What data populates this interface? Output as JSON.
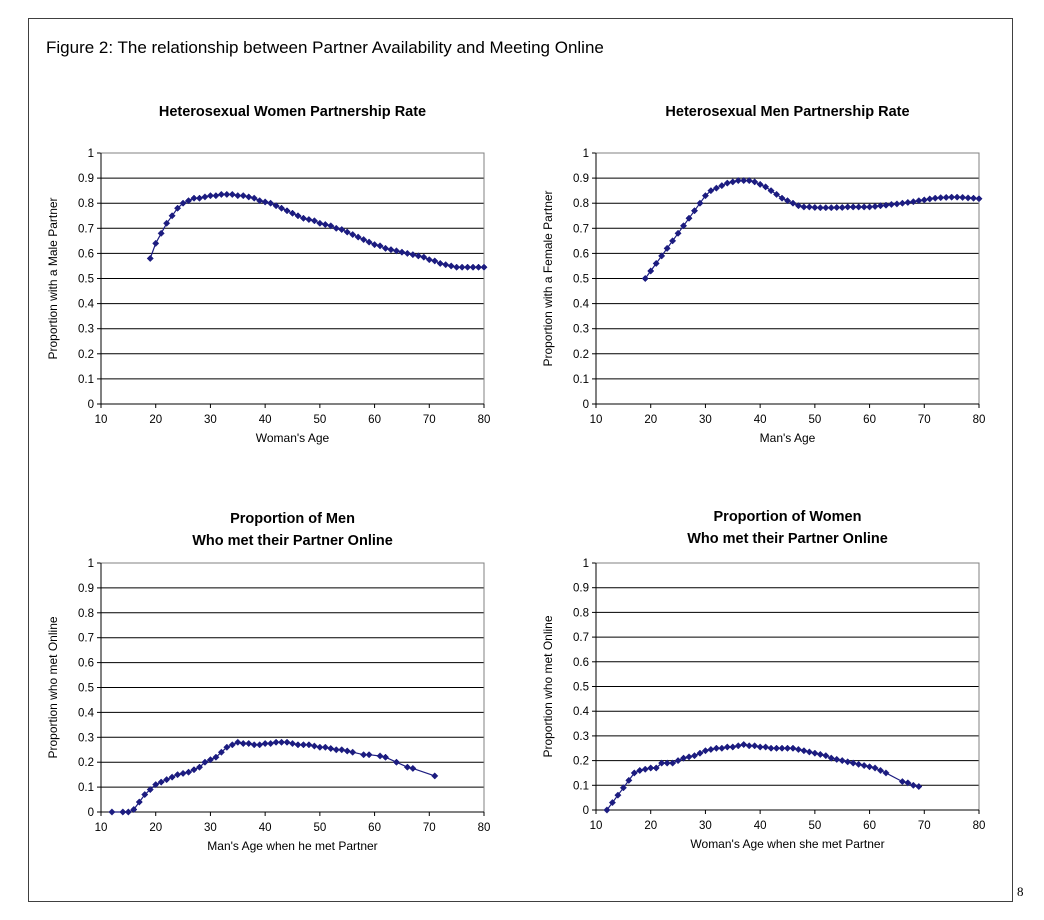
{
  "figure_title": "Figure 2: The relationship between Partner Availability and Meeting Online",
  "page_number": "8",
  "colors": {
    "series": "#1c1c80",
    "grid": "#000000",
    "frame": "#404040"
  },
  "chart_data": [
    {
      "type": "line",
      "title": "Heterosexual Women Partnership Rate",
      "xlabel": "Woman's Age",
      "ylabel": "Proportion with a Male Partner",
      "xlim": [
        10,
        80
      ],
      "ylim": [
        0,
        1
      ],
      "xticks": [
        "10",
        "20",
        "30",
        "40",
        "50",
        "60",
        "70",
        "80"
      ],
      "yticks": [
        "0",
        "0.1",
        "0.2",
        "0.3",
        "0.4",
        "0.5",
        "0.6",
        "0.7",
        "0.8",
        "0.9",
        "1"
      ],
      "grid": true,
      "marker": "diamond",
      "x": [
        19,
        20,
        21,
        22,
        23,
        24,
        25,
        26,
        27,
        28,
        29,
        30,
        31,
        32,
        33,
        34,
        35,
        36,
        37,
        38,
        39,
        40,
        41,
        42,
        43,
        44,
        45,
        46,
        47,
        48,
        49,
        50,
        51,
        52,
        53,
        54,
        55,
        56,
        57,
        58,
        59,
        60,
        61,
        62,
        63,
        64,
        65,
        66,
        67,
        68,
        69,
        70,
        71,
        72,
        73,
        74,
        75,
        76,
        77,
        78,
        79,
        80
      ],
      "y": [
        0.58,
        0.64,
        0.68,
        0.72,
        0.75,
        0.78,
        0.8,
        0.81,
        0.82,
        0.82,
        0.825,
        0.83,
        0.83,
        0.835,
        0.835,
        0.835,
        0.83,
        0.83,
        0.825,
        0.82,
        0.81,
        0.805,
        0.8,
        0.79,
        0.78,
        0.77,
        0.76,
        0.75,
        0.74,
        0.735,
        0.73,
        0.72,
        0.715,
        0.71,
        0.7,
        0.695,
        0.685,
        0.675,
        0.665,
        0.655,
        0.645,
        0.635,
        0.63,
        0.62,
        0.615,
        0.61,
        0.605,
        0.6,
        0.595,
        0.59,
        0.585,
        0.575,
        0.57,
        0.56,
        0.555,
        0.55,
        0.545,
        0.545,
        0.545,
        0.545,
        0.545,
        0.545
      ]
    },
    {
      "type": "line",
      "title": "Heterosexual Men Partnership Rate",
      "xlabel": "Man's Age",
      "ylabel": "Proportion with a Female Partner",
      "xlim": [
        10,
        80
      ],
      "ylim": [
        0,
        1
      ],
      "xticks": [
        "10",
        "20",
        "30",
        "40",
        "50",
        "60",
        "70",
        "80"
      ],
      "yticks": [
        "0",
        "0.1",
        "0.2",
        "0.3",
        "0.4",
        "0.5",
        "0.6",
        "0.7",
        "0.8",
        "0.9",
        "1"
      ],
      "grid": true,
      "marker": "diamond",
      "x": [
        19,
        20,
        21,
        22,
        23,
        24,
        25,
        26,
        27,
        28,
        29,
        30,
        31,
        32,
        33,
        34,
        35,
        36,
        37,
        38,
        39,
        40,
        41,
        42,
        43,
        44,
        45,
        46,
        47,
        48,
        49,
        50,
        51,
        52,
        53,
        54,
        55,
        56,
        57,
        58,
        59,
        60,
        61,
        62,
        63,
        64,
        65,
        66,
        67,
        68,
        69,
        70,
        71,
        72,
        73,
        74,
        75,
        76,
        77,
        78,
        79,
        80
      ],
      "y": [
        0.5,
        0.53,
        0.56,
        0.59,
        0.62,
        0.65,
        0.68,
        0.71,
        0.74,
        0.77,
        0.8,
        0.83,
        0.85,
        0.86,
        0.87,
        0.88,
        0.885,
        0.89,
        0.89,
        0.89,
        0.885,
        0.875,
        0.865,
        0.85,
        0.835,
        0.82,
        0.81,
        0.8,
        0.79,
        0.785,
        0.785,
        0.783,
        0.782,
        0.782,
        0.782,
        0.783,
        0.783,
        0.785,
        0.785,
        0.785,
        0.785,
        0.785,
        0.787,
        0.79,
        0.792,
        0.795,
        0.797,
        0.8,
        0.803,
        0.806,
        0.81,
        0.813,
        0.817,
        0.82,
        0.822,
        0.823,
        0.824,
        0.824,
        0.823,
        0.821,
        0.82,
        0.818
      ]
    },
    {
      "type": "line",
      "title": "Proportion of Men\nWho met their Partner Online",
      "xlabel": "Man's Age when he met Partner",
      "ylabel": "Proportion who met Online",
      "xlim": [
        10,
        80
      ],
      "ylim": [
        0,
        1
      ],
      "xticks": [
        "10",
        "20",
        "30",
        "40",
        "50",
        "60",
        "70",
        "80"
      ],
      "yticks": [
        "0",
        "0.1",
        "0.2",
        "0.3",
        "0.4",
        "0.5",
        "0.6",
        "0.7",
        "0.8",
        "0.9",
        "1"
      ],
      "grid": true,
      "marker": "diamond",
      "x": [
        12,
        14,
        15,
        16,
        17,
        18,
        19,
        20,
        21,
        22,
        23,
        24,
        25,
        26,
        27,
        28,
        29,
        30,
        31,
        32,
        33,
        34,
        35,
        36,
        37,
        38,
        39,
        40,
        41,
        42,
        43,
        44,
        45,
        46,
        47,
        48,
        49,
        50,
        51,
        52,
        53,
        54,
        55,
        56,
        58,
        59,
        61,
        62,
        64,
        66,
        67,
        71
      ],
      "y": [
        0.0,
        0.0,
        0.0,
        0.01,
        0.04,
        0.07,
        0.09,
        0.11,
        0.12,
        0.13,
        0.14,
        0.15,
        0.155,
        0.16,
        0.17,
        0.18,
        0.2,
        0.21,
        0.22,
        0.24,
        0.26,
        0.27,
        0.28,
        0.275,
        0.275,
        0.27,
        0.27,
        0.275,
        0.275,
        0.28,
        0.28,
        0.28,
        0.275,
        0.27,
        0.27,
        0.27,
        0.265,
        0.26,
        0.26,
        0.255,
        0.25,
        0.25,
        0.245,
        0.24,
        0.23,
        0.23,
        0.225,
        0.22,
        0.2,
        0.18,
        0.175,
        0.145
      ]
    },
    {
      "type": "line",
      "title": "Proportion of Women\nWho met their Partner Online",
      "xlabel": "Woman's Age when she met Partner",
      "ylabel": "Proportion who met Online",
      "xlim": [
        10,
        80
      ],
      "ylim": [
        0,
        1
      ],
      "xticks": [
        "10",
        "20",
        "30",
        "40",
        "50",
        "60",
        "70",
        "80"
      ],
      "yticks": [
        "0",
        "0.1",
        "0.2",
        "0.3",
        "0.4",
        "0.5",
        "0.6",
        "0.7",
        "0.8",
        "0.9",
        "1"
      ],
      "grid": true,
      "marker": "diamond",
      "x": [
        12,
        13,
        14,
        15,
        16,
        17,
        18,
        19,
        20,
        21,
        22,
        23,
        24,
        25,
        26,
        27,
        28,
        29,
        30,
        31,
        32,
        33,
        34,
        35,
        36,
        37,
        38,
        39,
        40,
        41,
        42,
        43,
        44,
        45,
        46,
        47,
        48,
        49,
        50,
        51,
        52,
        53,
        54,
        55,
        56,
        57,
        58,
        59,
        60,
        61,
        62,
        63,
        66,
        67,
        68,
        69
      ],
      "y": [
        0.0,
        0.03,
        0.06,
        0.09,
        0.12,
        0.15,
        0.16,
        0.165,
        0.17,
        0.17,
        0.19,
        0.19,
        0.19,
        0.2,
        0.21,
        0.215,
        0.22,
        0.23,
        0.24,
        0.245,
        0.25,
        0.25,
        0.255,
        0.255,
        0.26,
        0.265,
        0.26,
        0.26,
        0.255,
        0.255,
        0.25,
        0.25,
        0.25,
        0.25,
        0.25,
        0.245,
        0.24,
        0.235,
        0.23,
        0.225,
        0.22,
        0.21,
        0.205,
        0.2,
        0.195,
        0.19,
        0.185,
        0.18,
        0.175,
        0.17,
        0.16,
        0.15,
        0.115,
        0.11,
        0.1,
        0.095
      ]
    }
  ]
}
